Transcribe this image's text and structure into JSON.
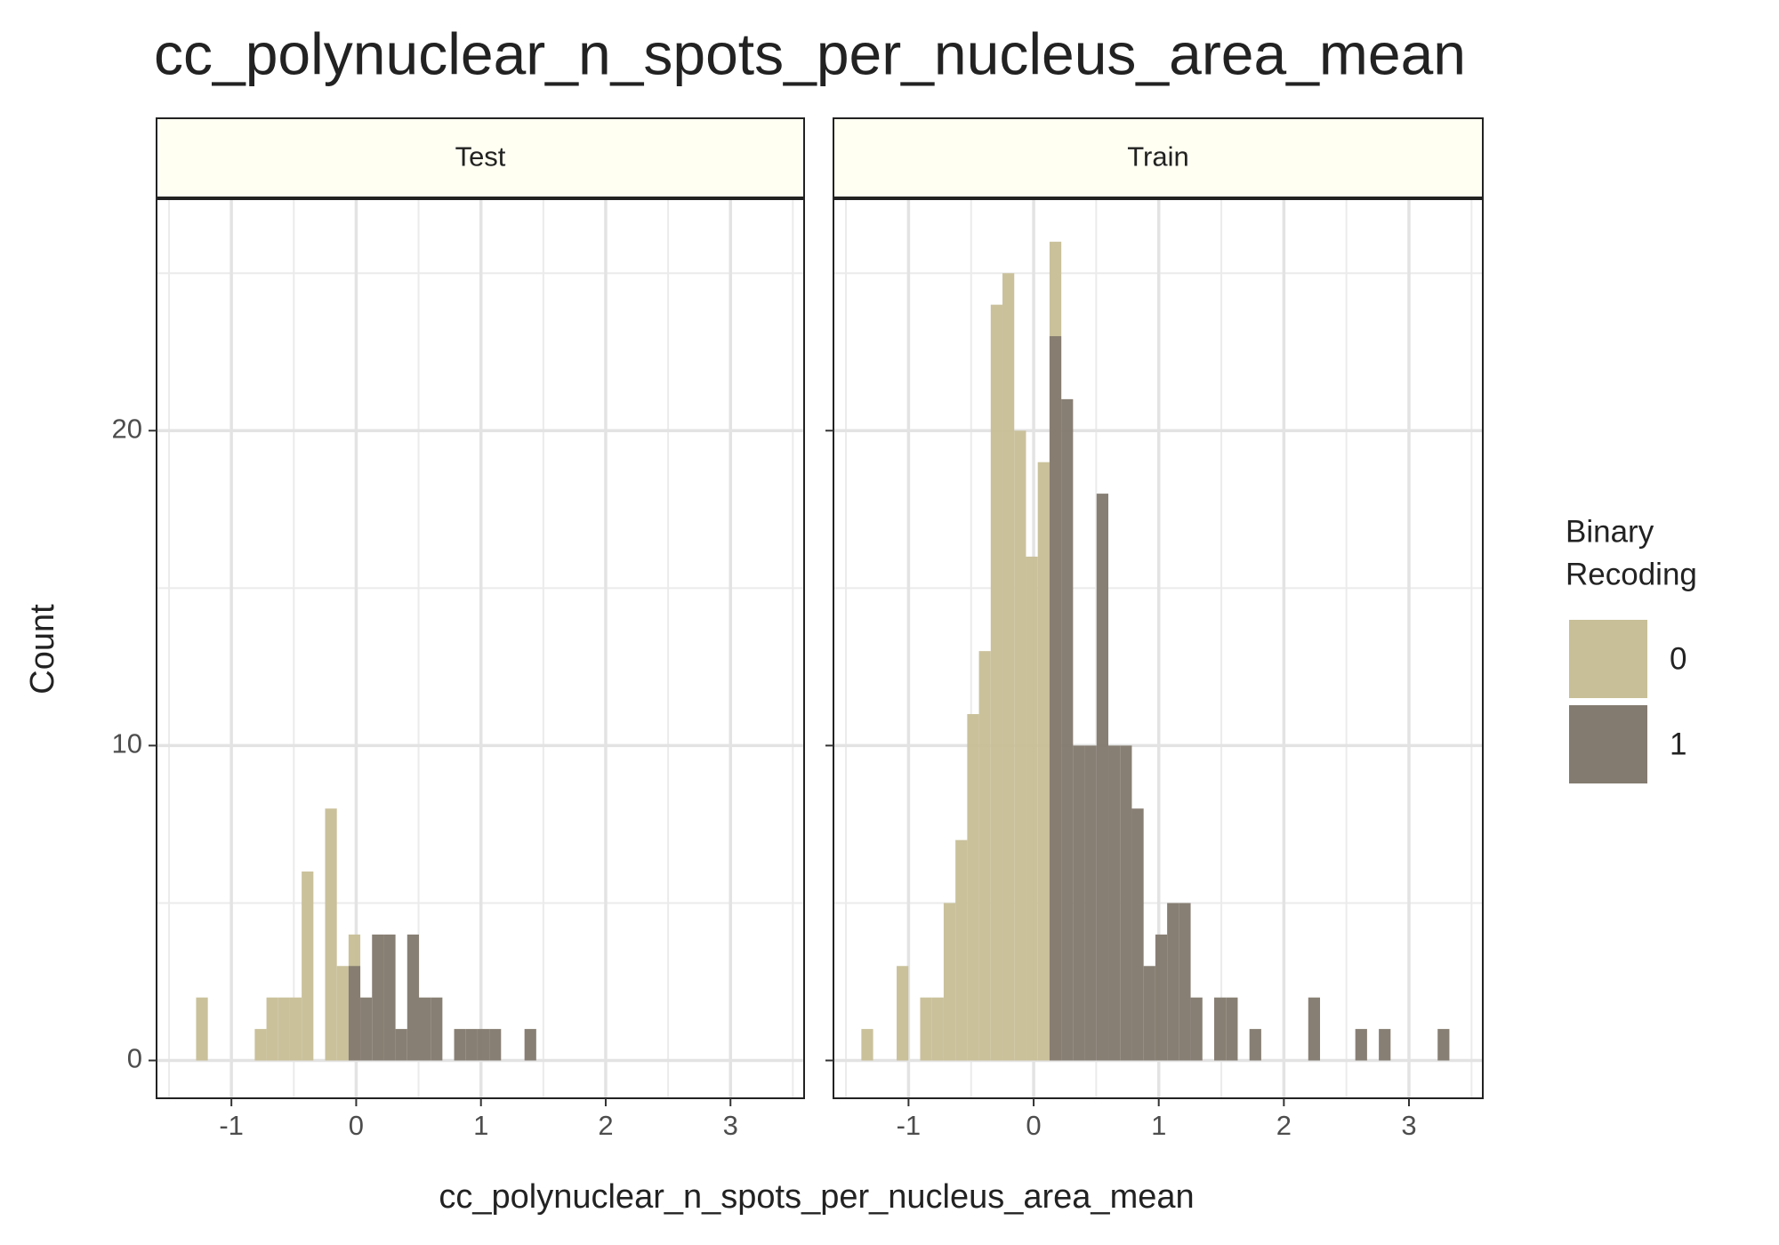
{
  "title": "cc_polynuclear_n_spots_per_nucleus_area_mean",
  "x_label": "cc_polynuclear_n_spots_per_nucleus_area_mean",
  "y_label": "Count",
  "legend_title": [
    "Binary",
    "Recoding"
  ],
  "chart_data": [
    {
      "type": "histogram",
      "title": "Test",
      "bins": [
        -1.377,
        -1.283,
        -1.189,
        -1.095,
        -1.001,
        -0.907,
        -0.813,
        -0.719,
        -0.625,
        -0.531,
        -0.437,
        -0.343,
        -0.249,
        -0.155,
        -0.061,
        0.033,
        0.127,
        0.221,
        0.315,
        0.409,
        0.503,
        0.597,
        0.691,
        0.785,
        0.879,
        0.973,
        1.067,
        1.161,
        1.255,
        1.349,
        1.443,
        1.537,
        1.631,
        1.725,
        1.819,
        1.913,
        2.007,
        2.101,
        2.195,
        2.289,
        2.383,
        2.477,
        2.571,
        2.665,
        2.759,
        2.853,
        2.947,
        3.041,
        3.135,
        3.229,
        3.323,
        3.417
      ],
      "series": [
        {
          "name": "0",
          "color": "#c8bf98",
          "values": [
            0,
            2,
            0,
            0,
            0,
            0,
            1,
            2,
            2,
            2,
            6,
            0,
            8,
            3,
            4,
            0,
            0,
            0,
            0,
            0,
            0,
            0,
            0,
            0,
            0,
            0,
            0,
            0,
            0,
            0,
            0,
            0,
            0,
            0,
            0,
            0,
            0,
            0,
            0,
            0,
            0,
            0,
            0,
            0,
            0,
            0,
            0,
            0,
            0,
            0,
            0
          ]
        },
        {
          "name": "1",
          "color": "#847b70",
          "values": [
            0,
            0,
            0,
            0,
            0,
            0,
            0,
            0,
            0,
            0,
            0,
            0,
            0,
            0,
            3,
            2,
            4,
            4,
            1,
            4,
            2,
            2,
            0,
            1,
            1,
            1,
            1,
            0,
            0,
            1,
            0,
            0,
            0,
            0,
            0,
            0,
            0,
            0,
            0,
            0,
            0,
            0,
            0,
            0,
            0,
            0,
            0,
            0,
            0,
            0,
            0
          ]
        }
      ],
      "xlim": [
        -1.6,
        3.59
      ],
      "xticks": [
        -1,
        0,
        1,
        2,
        3
      ],
      "ylim": [
        -1.2,
        27.35
      ],
      "yticks": [
        0,
        10,
        20
      ],
      "grid": true
    },
    {
      "type": "histogram",
      "title": "Train",
      "bins": [
        -1.377,
        -1.283,
        -1.189,
        -1.095,
        -1.001,
        -0.907,
        -0.813,
        -0.719,
        -0.625,
        -0.531,
        -0.437,
        -0.343,
        -0.249,
        -0.155,
        -0.061,
        0.033,
        0.127,
        0.221,
        0.315,
        0.409,
        0.503,
        0.597,
        0.691,
        0.785,
        0.879,
        0.973,
        1.067,
        1.161,
        1.255,
        1.349,
        1.443,
        1.537,
        1.631,
        1.725,
        1.819,
        1.913,
        2.007,
        2.101,
        2.195,
        2.289,
        2.383,
        2.477,
        2.571,
        2.665,
        2.759,
        2.853,
        2.947,
        3.041,
        3.135,
        3.229,
        3.323,
        3.417
      ],
      "series": [
        {
          "name": "0",
          "color": "#c8bf98",
          "values": [
            1,
            0,
            0,
            3,
            0,
            2,
            2,
            5,
            7,
            11,
            13,
            24,
            25,
            20,
            16,
            19,
            26,
            0,
            0,
            0,
            0,
            0,
            0,
            0,
            0,
            0,
            0,
            0,
            0,
            0,
            0,
            0,
            0,
            0,
            0,
            0,
            0,
            0,
            0,
            0,
            0,
            0,
            0,
            0,
            0,
            0,
            0,
            0,
            0,
            0,
            0
          ]
        },
        {
          "name": "1",
          "color": "#847b70",
          "values": [
            0,
            0,
            0,
            0,
            0,
            0,
            0,
            0,
            0,
            0,
            0,
            0,
            0,
            0,
            0,
            0,
            23,
            21,
            10,
            10,
            18,
            10,
            10,
            8,
            3,
            4,
            5,
            5,
            2,
            0,
            2,
            2,
            0,
            1,
            0,
            0,
            0,
            0,
            2,
            0,
            0,
            0,
            1,
            0,
            1,
            0,
            0,
            0,
            0,
            1,
            0
          ]
        }
      ],
      "xlim": [
        -1.6,
        3.59
      ],
      "xticks": [
        -1,
        0,
        1,
        2,
        3
      ],
      "ylim": [
        -1.2,
        27.35
      ],
      "yticks": [
        0,
        10,
        20
      ],
      "grid": true
    }
  ]
}
